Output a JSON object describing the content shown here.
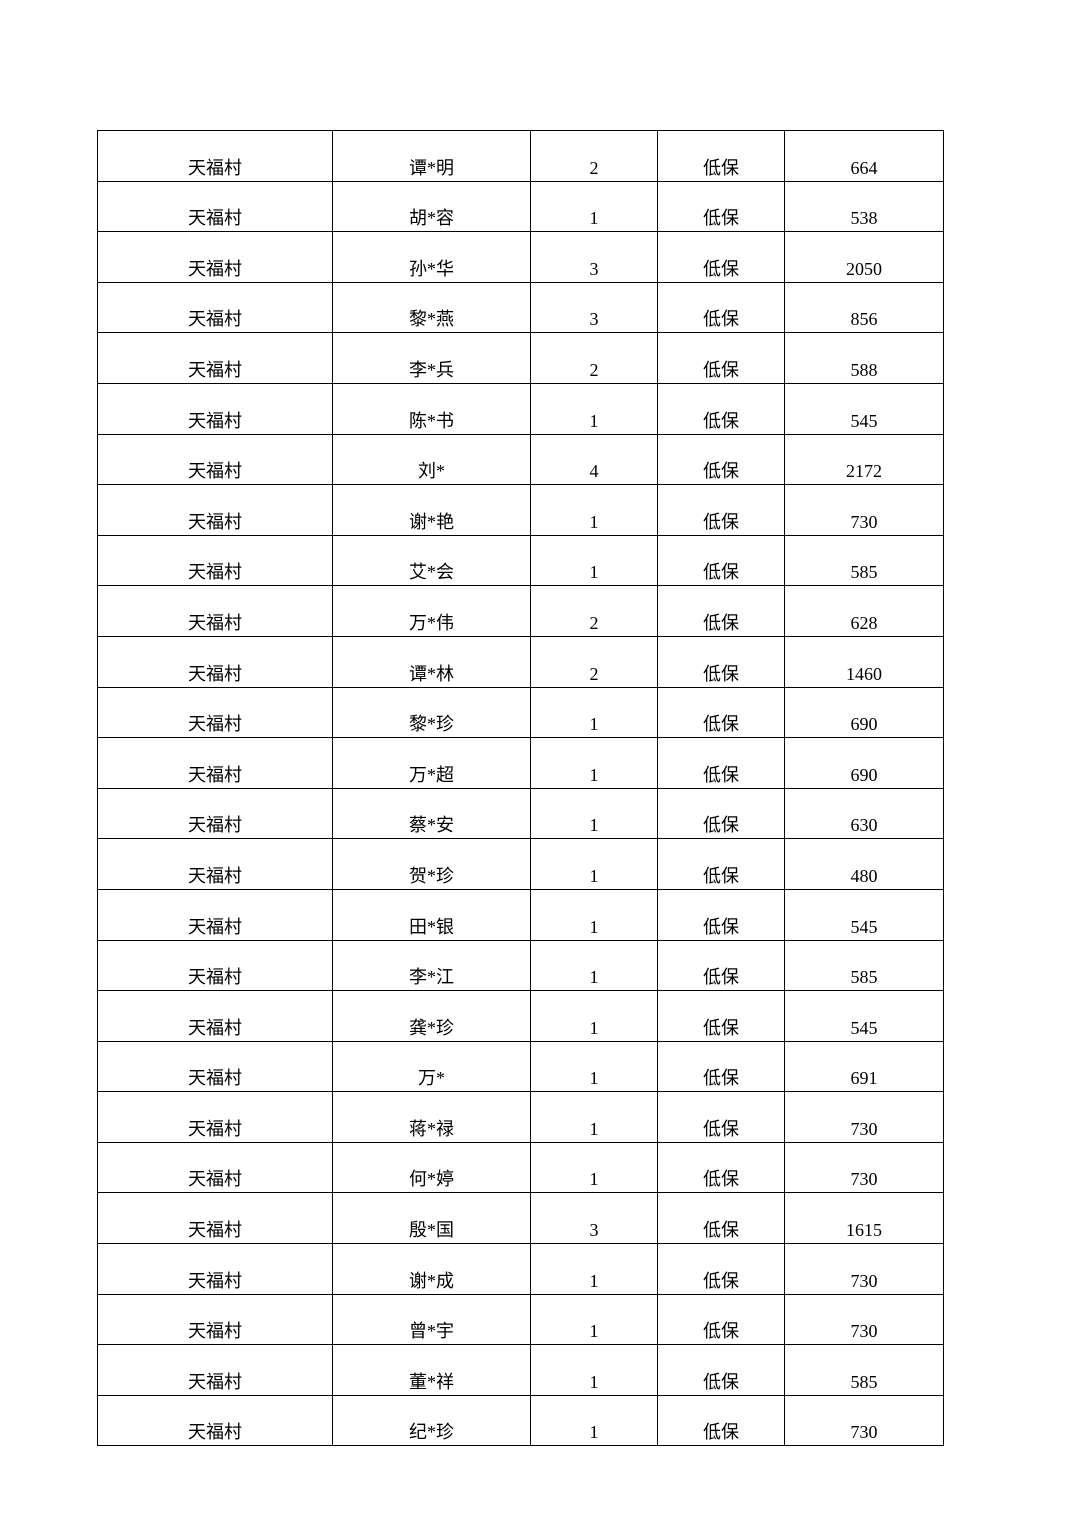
{
  "rows": [
    {
      "village": "天福村",
      "name": "谭*明",
      "count": "2",
      "type": "低保",
      "amount": "664"
    },
    {
      "village": "天福村",
      "name": "胡*容",
      "count": "1",
      "type": "低保",
      "amount": "538"
    },
    {
      "village": "天福村",
      "name": "孙*华",
      "count": "3",
      "type": "低保",
      "amount": "2050"
    },
    {
      "village": "天福村",
      "name": "黎*燕",
      "count": "3",
      "type": "低保",
      "amount": "856"
    },
    {
      "village": "天福村",
      "name": "李*兵",
      "count": "2",
      "type": "低保",
      "amount": "588"
    },
    {
      "village": "天福村",
      "name": "陈*书",
      "count": "1",
      "type": "低保",
      "amount": "545"
    },
    {
      "village": "天福村",
      "name": "刘*",
      "count": "4",
      "type": "低保",
      "amount": "2172"
    },
    {
      "village": "天福村",
      "name": "谢*艳",
      "count": "1",
      "type": "低保",
      "amount": "730"
    },
    {
      "village": "天福村",
      "name": "艾*会",
      "count": "1",
      "type": "低保",
      "amount": "585"
    },
    {
      "village": "天福村",
      "name": "万*伟",
      "count": "2",
      "type": "低保",
      "amount": "628"
    },
    {
      "village": "天福村",
      "name": "谭*林",
      "count": "2",
      "type": "低保",
      "amount": "1460"
    },
    {
      "village": "天福村",
      "name": "黎*珍",
      "count": "1",
      "type": "低保",
      "amount": "690"
    },
    {
      "village": "天福村",
      "name": "万*超",
      "count": "1",
      "type": "低保",
      "amount": "690"
    },
    {
      "village": "天福村",
      "name": "蔡*安",
      "count": "1",
      "type": "低保",
      "amount": "630"
    },
    {
      "village": "天福村",
      "name": "贺*珍",
      "count": "1",
      "type": "低保",
      "amount": "480"
    },
    {
      "village": "天福村",
      "name": "田*银",
      "count": "1",
      "type": "低保",
      "amount": "545"
    },
    {
      "village": "天福村",
      "name": "李*江",
      "count": "1",
      "type": "低保",
      "amount": "585"
    },
    {
      "village": "天福村",
      "name": "龚*珍",
      "count": "1",
      "type": "低保",
      "amount": "545"
    },
    {
      "village": "天福村",
      "name": "万*",
      "count": "1",
      "type": "低保",
      "amount": "691"
    },
    {
      "village": "天福村",
      "name": "蒋*禄",
      "count": "1",
      "type": "低保",
      "amount": "730"
    },
    {
      "village": "天福村",
      "name": "何*婷",
      "count": "1",
      "type": "低保",
      "amount": "730"
    },
    {
      "village": "天福村",
      "name": "殷*国",
      "count": "3",
      "type": "低保",
      "amount": "1615"
    },
    {
      "village": "天福村",
      "name": "谢*成",
      "count": "1",
      "type": "低保",
      "amount": "730"
    },
    {
      "village": "天福村",
      "name": "曾*宇",
      "count": "1",
      "type": "低保",
      "amount": "730"
    },
    {
      "village": "天福村",
      "name": "董*祥",
      "count": "1",
      "type": "低保",
      "amount": "585"
    },
    {
      "village": "天福村",
      "name": "纪*珍",
      "count": "1",
      "type": "低保",
      "amount": "730"
    }
  ]
}
